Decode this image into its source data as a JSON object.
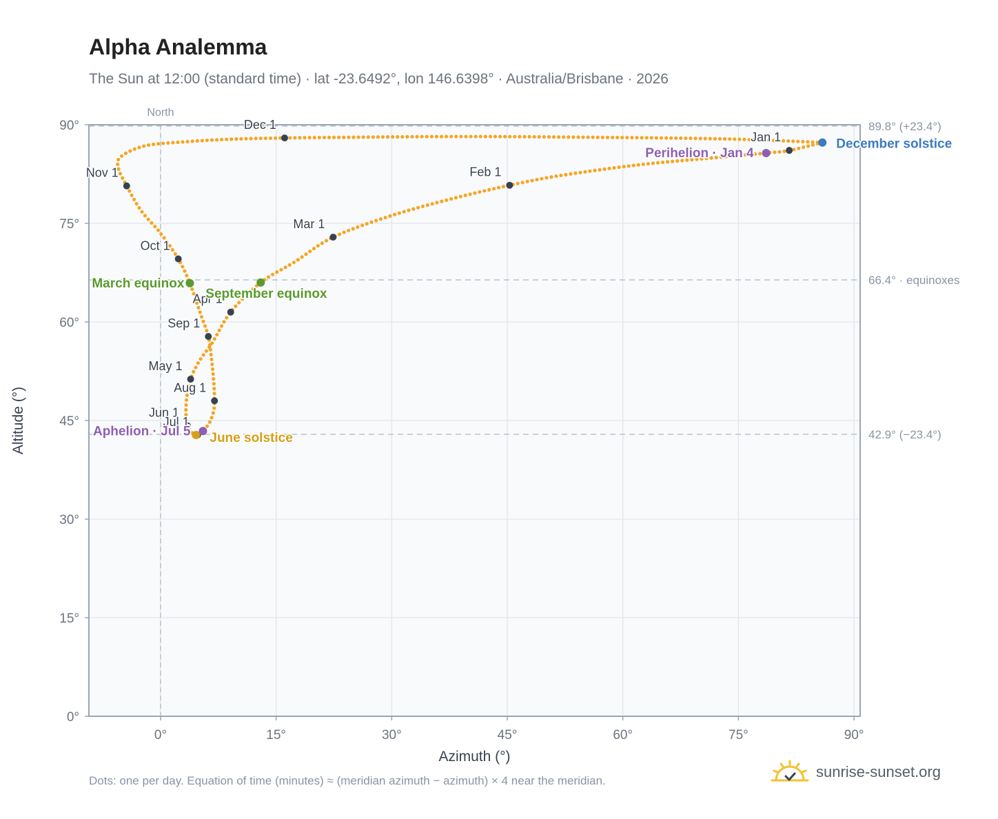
{
  "title": "Alpha Analemma",
  "subtitle": "The Sun at 12:00 (standard time) · lat -23.6492°, lon 146.6398° · Australia/Brisbane · 2026",
  "footnote": "Dots: one per day. Equation of time (minutes) ≈ (meridian azimuth − azimuth) × 4 near the meridian.",
  "brand": {
    "name": "sunrise-sunset.org",
    "icon": "sun-logo-icon"
  },
  "colors": {
    "path": "#f5a623",
    "month_dot": "#374151",
    "equinox": "#5a9a2e",
    "june_solstice": "#d4a017",
    "december_solstice": "#3b7bbf",
    "apsis": "#8e5fb3",
    "grid": "#e5e7eb",
    "frame": "#9aa5b4",
    "plot_bg": "#f8fafc",
    "refline": "#b8c2cc"
  },
  "chart_data": {
    "type": "scatter",
    "xlabel": "Azimuth (°)",
    "ylabel": "Altitude (°)",
    "xlim": [
      -9.3,
      90.8
    ],
    "ylim": [
      0,
      90
    ],
    "xticks": [
      0,
      15,
      30,
      45,
      60,
      75,
      90
    ],
    "yticks": [
      0,
      15,
      30,
      45,
      60,
      75,
      90
    ],
    "tick_suffix": "°",
    "grid": true,
    "north_marker": {
      "azimuth": 0,
      "label": "North"
    },
    "reference_lines": [
      {
        "altitude": 89.8,
        "label": "89.8° (+23.4°)"
      },
      {
        "altitude": 66.4,
        "label": "66.4° · equinoxes"
      },
      {
        "altitude": 42.9,
        "label": "42.9° (−23.4°)"
      }
    ],
    "month_markers": [
      {
        "label": "Jan 1",
        "azimuth": 81.6,
        "altitude": 86.1
      },
      {
        "label": "Feb 1",
        "azimuth": 45.3,
        "altitude": 80.8
      },
      {
        "label": "Mar 1",
        "azimuth": 22.4,
        "altitude": 72.9
      },
      {
        "label": "Apr 1",
        "azimuth": 9.1,
        "altitude": 61.5
      },
      {
        "label": "May 1",
        "azimuth": 3.9,
        "altitude": 51.3
      },
      {
        "label": "Jun 1",
        "azimuth": 3.5,
        "altitude": 44.2
      },
      {
        "label": "Jul 1",
        "azimuth": 4.8,
        "altitude": 42.8
      },
      {
        "label": "Aug 1",
        "azimuth": 7.0,
        "altitude": 48.0
      },
      {
        "label": "Sep 1",
        "azimuth": 6.2,
        "altitude": 57.8
      },
      {
        "label": "Oct 1",
        "azimuth": 2.3,
        "altitude": 69.6
      },
      {
        "label": "Nov 1",
        "azimuth": -4.4,
        "altitude": 80.7
      },
      {
        "label": "Dec 1",
        "azimuth": 16.1,
        "altitude": 88.0
      }
    ],
    "events": [
      {
        "label": "March equinox",
        "azimuth": 3.8,
        "altitude": 65.9,
        "kind": "equinox"
      },
      {
        "label": "September equinox",
        "azimuth": 13.0,
        "altitude": 66.0,
        "kind": "equinox"
      },
      {
        "label": "June solstice",
        "azimuth": 4.6,
        "altitude": 42.8,
        "kind": "june_solstice"
      },
      {
        "label": "December solstice",
        "azimuth": 85.9,
        "altitude": 87.3,
        "kind": "december_solstice"
      },
      {
        "label": "Perihelion · Jan 4",
        "azimuth": 78.6,
        "altitude": 85.7,
        "kind": "apsis"
      },
      {
        "label": "Aphelion · Jul 5",
        "azimuth": 5.5,
        "altitude": 43.4,
        "kind": "apsis"
      }
    ],
    "daily_path": [
      [
        85.9,
        87.3
      ],
      [
        81.6,
        86.1
      ],
      [
        78.6,
        85.7
      ],
      [
        71.0,
        84.9
      ],
      [
        62.0,
        83.9
      ],
      [
        52.0,
        82.3
      ],
      [
        45.3,
        80.8
      ],
      [
        38.0,
        78.8
      ],
      [
        30.0,
        76.2
      ],
      [
        22.4,
        72.9
      ],
      [
        17.5,
        69.2
      ],
      [
        13.0,
        66.0
      ],
      [
        9.1,
        61.5
      ],
      [
        6.8,
        57.0
      ],
      [
        5.0,
        54.0
      ],
      [
        3.9,
        51.3
      ],
      [
        3.4,
        48.5
      ],
      [
        3.3,
        46.0
      ],
      [
        3.5,
        44.2
      ],
      [
        4.2,
        43.0
      ],
      [
        4.8,
        42.8
      ],
      [
        5.5,
        43.4
      ],
      [
        6.4,
        44.8
      ],
      [
        6.9,
        46.5
      ],
      [
        7.0,
        48.0
      ],
      [
        6.9,
        51.0
      ],
      [
        6.6,
        54.5
      ],
      [
        6.2,
        57.8
      ],
      [
        5.2,
        61.2
      ],
      [
        3.8,
        65.9
      ],
      [
        2.3,
        69.6
      ],
      [
        0.0,
        73.5
      ],
      [
        -2.5,
        76.9
      ],
      [
        -4.4,
        80.7
      ],
      [
        -5.5,
        83.5
      ],
      [
        -5.1,
        85.2
      ],
      [
        -2.0,
        86.8
      ],
      [
        3.0,
        87.4
      ],
      [
        9.0,
        87.8
      ],
      [
        16.1,
        88.0
      ],
      [
        25.0,
        88.1
      ],
      [
        35.0,
        88.2
      ],
      [
        45.0,
        88.2
      ],
      [
        55.0,
        88.1
      ],
      [
        65.0,
        88.0
      ],
      [
        75.0,
        87.8
      ],
      [
        82.0,
        87.5
      ],
      [
        85.9,
        87.3
      ]
    ]
  }
}
